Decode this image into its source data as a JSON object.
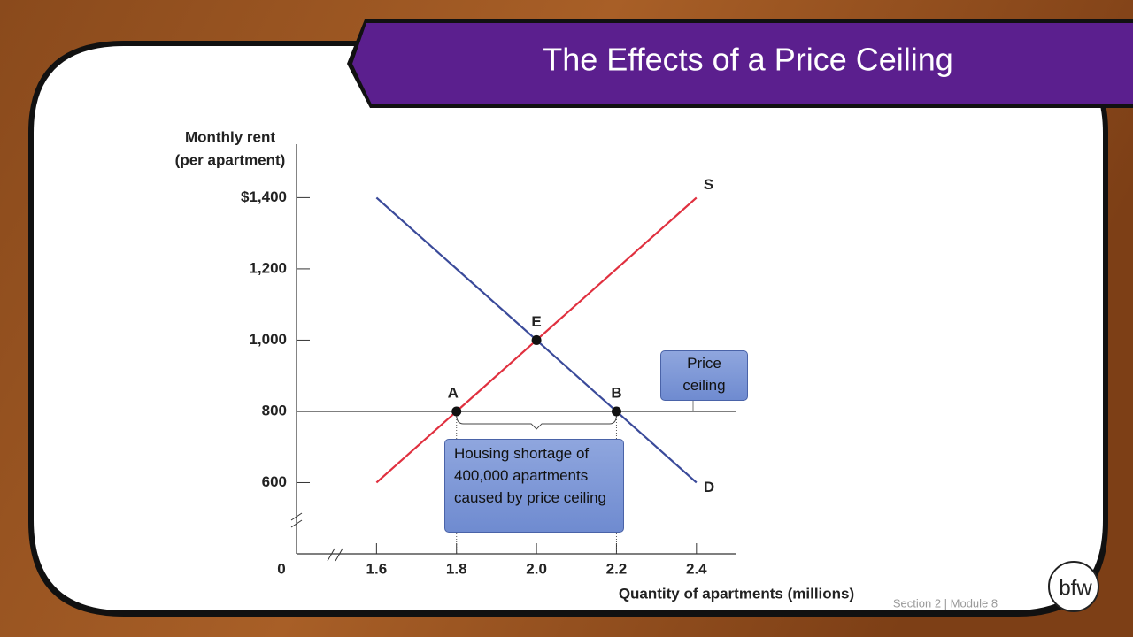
{
  "slide": {
    "title": "The Effects of a Price Ceiling",
    "footer": "Section 2 | Module 8",
    "logo": "bfw"
  },
  "chart_data": {
    "type": "line",
    "ylabel": [
      "Monthly rent",
      "(per apartment)"
    ],
    "xlabel": "Quantity of apartments (millions)",
    "origin_label": "0",
    "x": [
      1.6,
      2.4
    ],
    "series": [
      {
        "name": "S",
        "color": "#e0303f",
        "values": [
          600,
          1400
        ]
      },
      {
        "name": "D",
        "color": "#3a4a9a",
        "values": [
          1400,
          600
        ]
      }
    ],
    "xlim": [
      1.4,
      2.5
    ],
    "xticks": [
      1.6,
      1.8,
      {
        "value": 2,
        "label": "2.0"
      },
      2.2,
      2.4
    ],
    "ylim": [
      400,
      1550
    ],
    "yticks": [
      600,
      800,
      {
        "value": 1000,
        "label": "1,000"
      },
      {
        "value": 1200,
        "label": "1,200"
      },
      {
        "value": 1400,
        "label": "$1,400"
      }
    ],
    "price_ceiling": {
      "value": 800,
      "label": "Price ceiling"
    },
    "points": [
      {
        "label": "E",
        "x": 2,
        "y": 1000
      },
      {
        "label": "A",
        "x": 1.8,
        "y": 800
      },
      {
        "label": "B",
        "x": 2.2,
        "y": 800
      }
    ],
    "annotation": "Housing shortage of 400,000 apartments caused by price ceiling"
  }
}
